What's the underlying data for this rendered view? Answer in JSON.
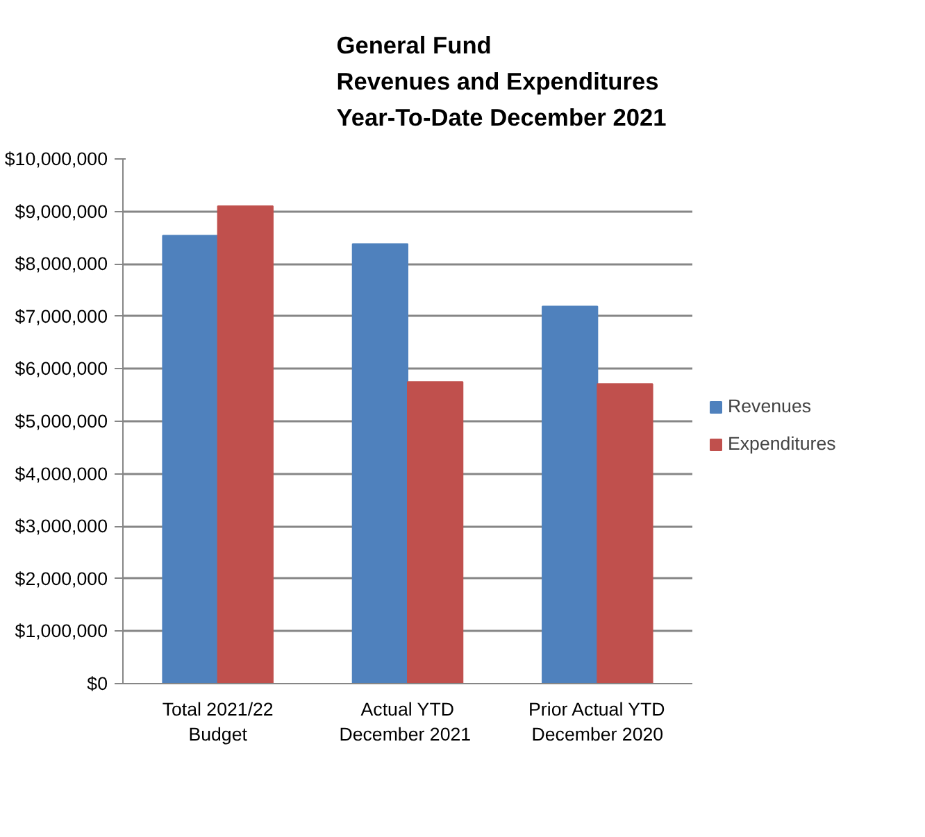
{
  "chart_data": {
    "type": "bar",
    "title": "General Fund\nRevenues and Expenditures\nYear-To-Date December 2021",
    "categories": [
      "Total 2021/22\nBudget",
      "Actual YTD\nDecember  2021",
      "Prior Actual YTD\nDecember 2020"
    ],
    "series": [
      {
        "name": "Revenues",
        "color": "#4f81bd",
        "values": [
          8540000,
          8380000,
          7190000
        ]
      },
      {
        "name": "Expenditures",
        "color": "#c0504d",
        "values": [
          9100000,
          5750000,
          5710000
        ]
      }
    ],
    "ylim": [
      0,
      10000000
    ],
    "yticks": [
      {
        "value": 0,
        "label": "$0"
      },
      {
        "value": 1000000,
        "label": "$1,000,000"
      },
      {
        "value": 2000000,
        "label": "$2,000,000"
      },
      {
        "value": 3000000,
        "label": "$3,000,000"
      },
      {
        "value": 4000000,
        "label": "$4,000,000"
      },
      {
        "value": 5000000,
        "label": "$5,000,000"
      },
      {
        "value": 6000000,
        "label": "$6,000,000"
      },
      {
        "value": 7000000,
        "label": "$7,000,000"
      },
      {
        "value": 8000000,
        "label": "$8,000,000"
      },
      {
        "value": 9000000,
        "label": "$9,000,000"
      },
      {
        "value": 10000000,
        "label": "$10,000,000"
      }
    ],
    "grid": "y",
    "legend": "right"
  }
}
